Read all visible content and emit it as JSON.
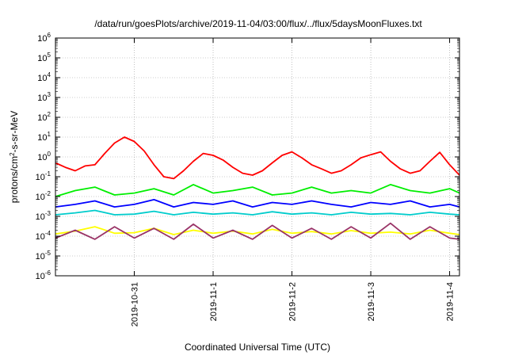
{
  "chart_data": {
    "type": "line",
    "title": "/data/run/goesPlots/archive/2019-11-04/03:00/flux/../flux/5daysMoonFluxes.txt",
    "xlabel": "Coordinated Universal Time (UTC)",
    "ylabel": "protons/cm2-s-sr-MeV",
    "ylabel_parts": {
      "base": "protons/cm",
      "sup": "2",
      "rest": "-s-sr-MeV"
    },
    "yscale": "log",
    "ylim": [
      1e-06,
      1000000.0
    ],
    "y_tick_exponents": [
      -6,
      -5,
      -4,
      -3,
      -2,
      -1,
      0,
      1,
      2,
      3,
      4,
      5,
      6
    ],
    "y_tick_base": "10",
    "xlim": [
      "2019-10-30T00:00",
      "2019-11-04T03:00"
    ],
    "x_ticks": [
      "2019-10-31",
      "2019-11-1",
      "2019-11-2",
      "2019-11-3",
      "2019-11-4"
    ],
    "x_tick_values": [
      "2019-10-31T00:00",
      "2019-11-01T00:00",
      "2019-11-02T00:00",
      "2019-11-03T00:00",
      "2019-11-04T00:00"
    ],
    "grid": true,
    "legend": "none",
    "series": [
      {
        "color": "#ff0000",
        "x": [
          "2019-10-30T00:00",
          "2019-10-30T03:00",
          "2019-10-30T06:00",
          "2019-10-30T09:00",
          "2019-10-30T12:00",
          "2019-10-30T15:00",
          "2019-10-30T18:00",
          "2019-10-30T21:00",
          "2019-10-31T00:00",
          "2019-10-31T03:00",
          "2019-10-31T06:00",
          "2019-10-31T09:00",
          "2019-10-31T12:00",
          "2019-10-31T15:00",
          "2019-10-31T18:00",
          "2019-10-31T21:00",
          "2019-11-01T00:00",
          "2019-11-01T03:00",
          "2019-11-01T06:00",
          "2019-11-01T09:00",
          "2019-11-01T12:00",
          "2019-11-01T15:00",
          "2019-11-01T18:00",
          "2019-11-01T21:00",
          "2019-11-02T00:00",
          "2019-11-02T03:00",
          "2019-11-02T06:00",
          "2019-11-02T09:00",
          "2019-11-02T12:00",
          "2019-11-02T15:00",
          "2019-11-02T18:00",
          "2019-11-02T21:00",
          "2019-11-03T00:00",
          "2019-11-03T03:00",
          "2019-11-03T06:00",
          "2019-11-03T09:00",
          "2019-11-03T12:00",
          "2019-11-03T15:00",
          "2019-11-03T18:00",
          "2019-11-03T21:00",
          "2019-11-04T00:00",
          "2019-11-04T03:00"
        ],
        "values": [
          0.5,
          0.3,
          0.2,
          0.35,
          0.4,
          1.5,
          5,
          10,
          6,
          2,
          0.4,
          0.1,
          0.08,
          0.2,
          0.6,
          1.5,
          1.2,
          0.7,
          0.3,
          0.15,
          0.12,
          0.2,
          0.5,
          1.2,
          1.8,
          0.9,
          0.4,
          0.25,
          0.15,
          0.2,
          0.4,
          0.9,
          1.3,
          1.8,
          0.6,
          0.25,
          0.15,
          0.2,
          0.6,
          1.7,
          0.4,
          0.12
        ]
      },
      {
        "color": "#00ee00",
        "x": [
          "2019-10-30T00:00",
          "2019-10-30T06:00",
          "2019-10-30T12:00",
          "2019-10-30T18:00",
          "2019-10-31T00:00",
          "2019-10-31T06:00",
          "2019-10-31T12:00",
          "2019-10-31T18:00",
          "2019-11-01T00:00",
          "2019-11-01T06:00",
          "2019-11-01T12:00",
          "2019-11-01T18:00",
          "2019-11-02T00:00",
          "2019-11-02T06:00",
          "2019-11-02T12:00",
          "2019-11-02T18:00",
          "2019-11-03T00:00",
          "2019-11-03T06:00",
          "2019-11-03T12:00",
          "2019-11-03T18:00",
          "2019-11-04T00:00",
          "2019-11-04T03:00"
        ],
        "values": [
          0.01,
          0.02,
          0.03,
          0.012,
          0.015,
          0.025,
          0.012,
          0.04,
          0.015,
          0.02,
          0.03,
          0.012,
          0.015,
          0.03,
          0.015,
          0.02,
          0.015,
          0.04,
          0.02,
          0.015,
          0.025,
          0.015
        ]
      },
      {
        "color": "#0000ff",
        "x": [
          "2019-10-30T00:00",
          "2019-10-30T06:00",
          "2019-10-30T12:00",
          "2019-10-30T18:00",
          "2019-10-31T00:00",
          "2019-10-31T06:00",
          "2019-10-31T12:00",
          "2019-10-31T18:00",
          "2019-11-01T00:00",
          "2019-11-01T06:00",
          "2019-11-01T12:00",
          "2019-11-01T18:00",
          "2019-11-02T00:00",
          "2019-11-02T06:00",
          "2019-11-02T12:00",
          "2019-11-02T18:00",
          "2019-11-03T00:00",
          "2019-11-03T06:00",
          "2019-11-03T12:00",
          "2019-11-03T18:00",
          "2019-11-04T00:00",
          "2019-11-04T03:00"
        ],
        "values": [
          0.003,
          0.004,
          0.006,
          0.003,
          0.004,
          0.007,
          0.003,
          0.005,
          0.004,
          0.006,
          0.003,
          0.005,
          0.004,
          0.006,
          0.004,
          0.003,
          0.005,
          0.004,
          0.006,
          0.003,
          0.004,
          0.003
        ]
      },
      {
        "color": "#00cccc",
        "x": [
          "2019-10-30T00:00",
          "2019-10-30T06:00",
          "2019-10-30T12:00",
          "2019-10-30T18:00",
          "2019-10-31T00:00",
          "2019-10-31T06:00",
          "2019-10-31T12:00",
          "2019-10-31T18:00",
          "2019-11-01T00:00",
          "2019-11-01T06:00",
          "2019-11-01T12:00",
          "2019-11-01T18:00",
          "2019-11-02T00:00",
          "2019-11-02T06:00",
          "2019-11-02T12:00",
          "2019-11-02T18:00",
          "2019-11-03T00:00",
          "2019-11-03T06:00",
          "2019-11-03T12:00",
          "2019-11-03T18:00",
          "2019-11-04T00:00",
          "2019-11-04T03:00"
        ],
        "values": [
          0.0012,
          0.0015,
          0.002,
          0.0012,
          0.0013,
          0.0018,
          0.0012,
          0.0016,
          0.0013,
          0.0015,
          0.0012,
          0.0017,
          0.0013,
          0.0015,
          0.0012,
          0.0016,
          0.0013,
          0.0014,
          0.0012,
          0.0016,
          0.0013,
          0.0012
        ]
      },
      {
        "color": "#ffff00",
        "x": [
          "2019-10-30T00:00",
          "2019-10-30T06:00",
          "2019-10-30T12:00",
          "2019-10-30T18:00",
          "2019-10-31T00:00",
          "2019-10-31T06:00",
          "2019-10-31T12:00",
          "2019-10-31T18:00",
          "2019-11-01T00:00",
          "2019-11-01T06:00",
          "2019-11-01T12:00",
          "2019-11-01T18:00",
          "2019-11-02T00:00",
          "2019-11-02T06:00",
          "2019-11-02T12:00",
          "2019-11-02T18:00",
          "2019-11-03T00:00",
          "2019-11-03T06:00",
          "2019-11-03T12:00",
          "2019-11-03T18:00",
          "2019-11-04T00:00",
          "2019-11-04T03:00"
        ],
        "values": [
          0.00013,
          0.00018,
          0.0003,
          0.00014,
          0.00015,
          0.00025,
          0.00012,
          0.0002,
          0.00014,
          0.00018,
          0.00013,
          0.00022,
          0.00014,
          0.00017,
          0.00013,
          0.00019,
          0.00014,
          0.00016,
          0.00013,
          0.0002,
          0.00014,
          0.00012
        ]
      },
      {
        "color": "#993366",
        "x": [
          "2019-10-30T00:00",
          "2019-10-30T06:00",
          "2019-10-30T12:00",
          "2019-10-30T18:00",
          "2019-10-31T00:00",
          "2019-10-31T06:00",
          "2019-10-31T12:00",
          "2019-10-31T18:00",
          "2019-11-01T00:00",
          "2019-11-01T06:00",
          "2019-11-01T12:00",
          "2019-11-01T18:00",
          "2019-11-02T00:00",
          "2019-11-02T06:00",
          "2019-11-02T12:00",
          "2019-11-02T18:00",
          "2019-11-03T00:00",
          "2019-11-03T06:00",
          "2019-11-03T12:00",
          "2019-11-03T18:00",
          "2019-11-04T00:00",
          "2019-11-04T03:00"
        ],
        "values": [
          8e-05,
          0.0002,
          7e-05,
          0.0003,
          8e-05,
          0.00025,
          7e-05,
          0.0004,
          8e-05,
          0.0002,
          7e-05,
          0.00035,
          8e-05,
          0.00025,
          7e-05,
          0.0003,
          8e-05,
          0.00045,
          7e-05,
          0.0003,
          8e-05,
          7e-05
        ]
      }
    ]
  }
}
